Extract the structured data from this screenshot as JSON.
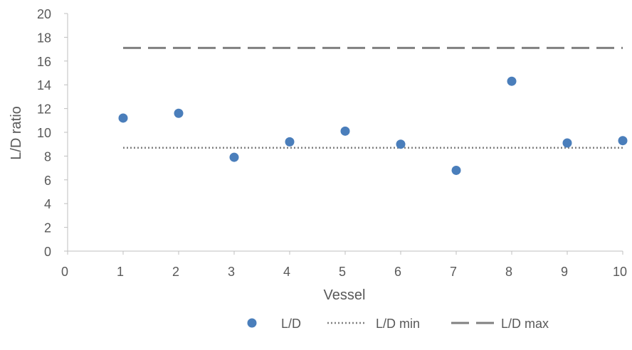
{
  "chart_data": {
    "type": "scatter",
    "title": "",
    "xlabel": "Vessel",
    "ylabel": "L/D ratio",
    "xlim": [
      0,
      10
    ],
    "ylim": [
      0,
      20
    ],
    "x_ticks": [
      0,
      1,
      2,
      3,
      4,
      5,
      6,
      7,
      8,
      9,
      10
    ],
    "y_ticks": [
      0,
      2,
      4,
      6,
      8,
      10,
      12,
      14,
      16,
      18,
      20
    ],
    "grid": false,
    "legend_position": "bottom-right",
    "series": [
      {
        "name": "L/D",
        "kind": "markers",
        "color": "#4a7ebb",
        "x": [
          1,
          2,
          3,
          4,
          5,
          6,
          7,
          8,
          9,
          10
        ],
        "y": [
          11.2,
          11.6,
          7.9,
          9.2,
          10.1,
          9.0,
          6.8,
          14.3,
          9.1,
          9.3
        ]
      },
      {
        "name": "L/D min",
        "kind": "dotted-line",
        "color": "#808080",
        "x": [
          1,
          10
        ],
        "y": [
          8.7,
          8.7
        ]
      },
      {
        "name": "L/D max",
        "kind": "dashed-line",
        "color": "#808080",
        "x": [
          1,
          10
        ],
        "y": [
          17.1,
          17.1
        ]
      }
    ]
  }
}
